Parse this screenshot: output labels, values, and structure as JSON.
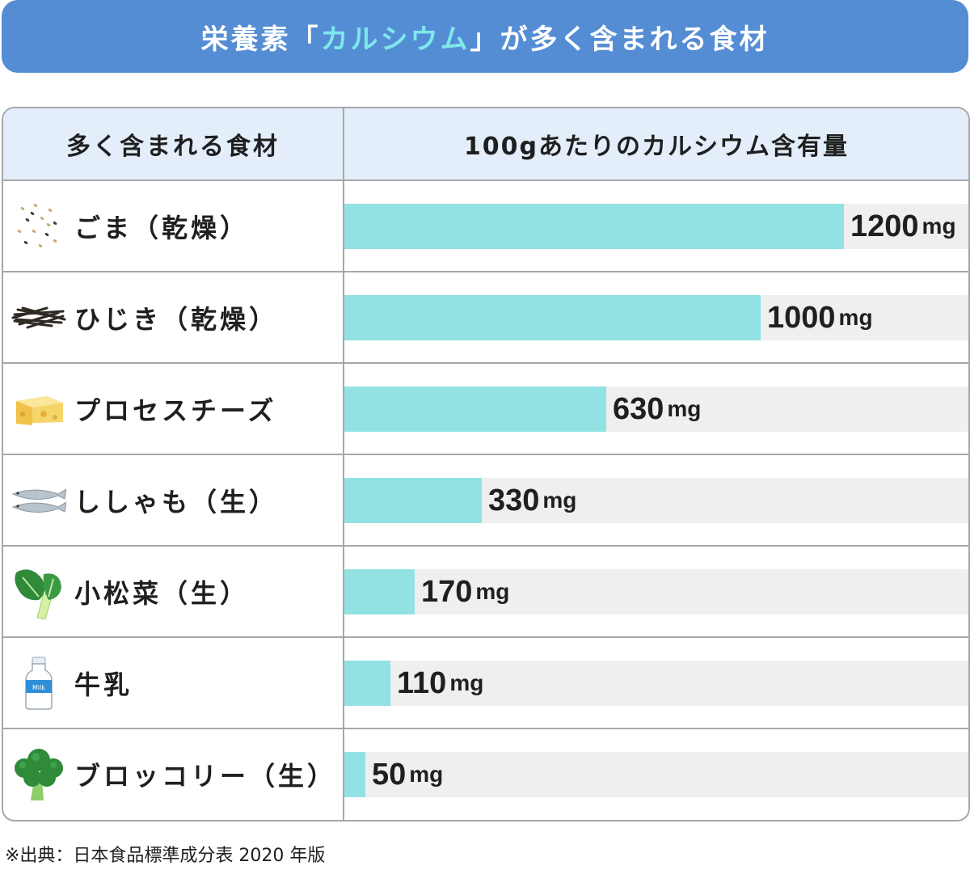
{
  "banner": {
    "before": "栄養素「",
    "highlight": "カルシウム",
    "after": "」が多く含まれる食材"
  },
  "header": {
    "col_food": "多く含まれる食材",
    "col_amount": "100gあたりのカルシウム含有量"
  },
  "footnote": "※出典：日本食品標準成分表 2020 年版",
  "colors": {
    "banner": "#548dd3",
    "highlight": "#7ee8ec",
    "bar": "#93e2e3",
    "track": "#efefef",
    "header_bg": "#e3eefa",
    "grid": "#a7a7a7"
  },
  "chart_data": {
    "type": "bar",
    "orientation": "horizontal",
    "unit": "mg",
    "xlim": [
      0,
      1500
    ],
    "categories": [
      "ごま（乾燥）",
      "ひじき（乾燥）",
      "プロセスチーズ",
      "ししゃも（生）",
      "小松菜（生）",
      "牛乳",
      "ブロッコリー（生）"
    ],
    "values": [
      1200,
      1000,
      630,
      330,
      170,
      110,
      50
    ],
    "value_labels": [
      "1200",
      "1000",
      "630",
      "330",
      "170",
      "110",
      "50"
    ],
    "icons": [
      "sesame-icon",
      "hijiki-icon",
      "cheese-icon",
      "shishamo-icon",
      "komatsuna-icon",
      "milk-bottle-icon",
      "broccoli-icon"
    ]
  }
}
